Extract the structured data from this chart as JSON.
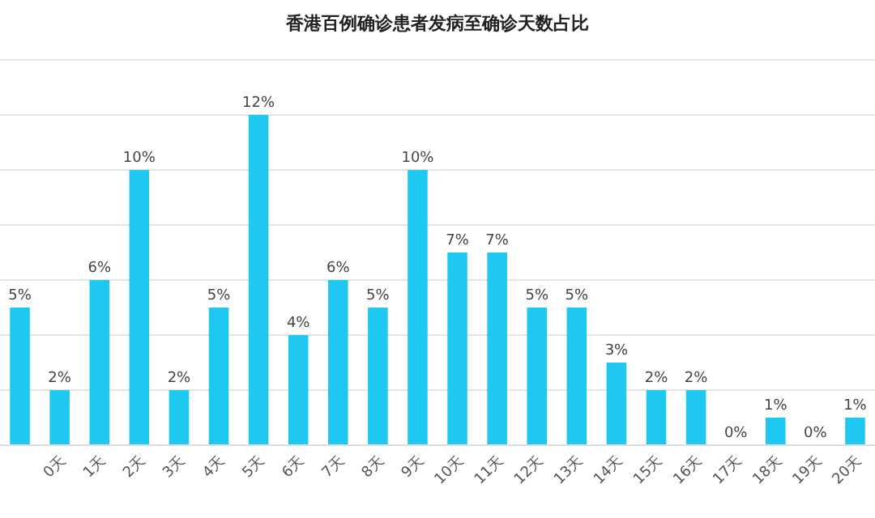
{
  "chart_data": {
    "type": "bar",
    "title": "香港百例确诊患者发病至确诊天数占比",
    "categories": [
      null,
      "0天",
      "1天",
      "2天",
      "3天",
      "4天",
      "5天",
      "6天",
      "7天",
      "8天",
      "9天",
      "10天",
      "11天",
      "12天",
      "13天",
      "14天",
      "15天",
      "16天",
      "17天",
      "18天",
      "19天",
      "20天"
    ],
    "values": [
      5,
      2,
      6,
      10,
      2,
      5,
      12,
      4,
      6,
      5,
      10,
      7,
      7,
      5,
      5,
      3,
      2,
      2,
      0,
      1,
      0,
      1
    ],
    "value_labels": [
      "5%",
      "2%",
      "6%",
      "10%",
      "2%",
      "5%",
      "12%",
      "4%",
      "6%",
      "5%",
      "10%",
      "7%",
      "7%",
      "5%",
      "5%",
      "3%",
      "2%",
      "2%",
      "0%",
      "1%",
      "0%",
      "1%"
    ],
    "color": "#1ec8f0",
    "ylim": [
      0,
      14
    ],
    "yticks": [
      {
        "value": 0,
        "label": null
      },
      {
        "value": 2,
        "label": null
      },
      {
        "value": 4,
        "label": null
      },
      {
        "value": 6,
        "label": null
      },
      {
        "value": 8,
        "label": null
      },
      {
        "value": 10,
        "label": null
      },
      {
        "value": 12,
        "label": null
      },
      {
        "value": 14,
        "label": null
      }
    ],
    "grid": "y",
    "tick_labels": "x"
  }
}
